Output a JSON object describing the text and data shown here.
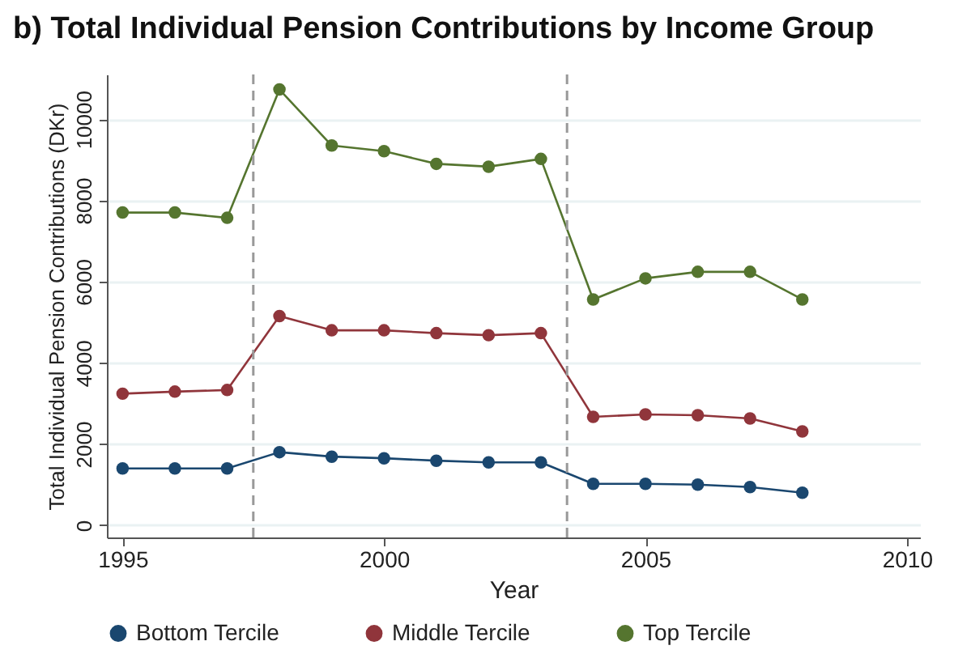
{
  "chart_data": {
    "type": "line",
    "title": "b) Total Individual Pension Contributions by Income Group",
    "xlabel": "Year",
    "ylabel": "Total Individual Pension Contributions (DKr)",
    "x": [
      1995,
      1996,
      1997,
      1998,
      1999,
      2000,
      2001,
      2002,
      2003,
      2004,
      2005,
      2006,
      2007,
      2008
    ],
    "series": [
      {
        "name": "Bottom Tercile",
        "color": "#1a476f",
        "values": [
          1400,
          1400,
          1400,
          1800,
          1690,
          1650,
          1590,
          1550,
          1550,
          1020,
          1020,
          1000,
          940,
          800
        ]
      },
      {
        "name": "Middle Tercile",
        "color": "#90353b",
        "values": [
          3240,
          3290,
          3330,
          5150,
          4800,
          4800,
          4730,
          4680,
          4730,
          2670,
          2730,
          2710,
          2630,
          2310
        ]
      },
      {
        "name": "Top Tercile",
        "color": "#55752f",
        "values": [
          7700,
          7700,
          7570,
          10730,
          9350,
          9210,
          8900,
          8830,
          9020,
          5560,
          6080,
          6240,
          6240,
          5560
        ]
      }
    ],
    "xlim": [
      1994.7,
      2010.25
    ],
    "xticks": [
      1995,
      2000,
      2005,
      2010
    ],
    "ylim": [
      -300,
      11100
    ],
    "yticks": [
      0,
      2000,
      4000,
      6000,
      8000,
      10000
    ],
    "ref_lines": [
      {
        "axis": "x",
        "value": 1997.5,
        "color": "#999999",
        "line_style": "dashed"
      },
      {
        "axis": "x",
        "value": 2003.5,
        "color": "#999999",
        "line_style": "dashed"
      }
    ],
    "grid": "y",
    "legend": "bottom",
    "marker": "circle",
    "line_style": "solid"
  }
}
